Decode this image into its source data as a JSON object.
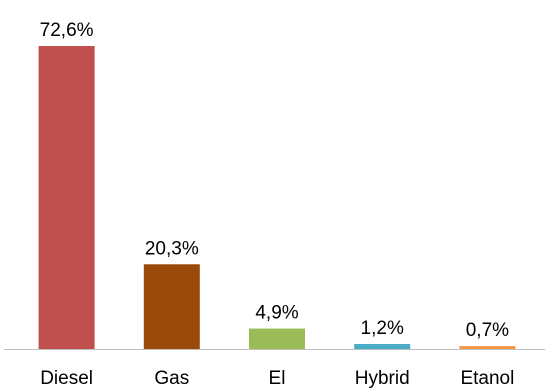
{
  "chart_data": {
    "type": "bar",
    "categories": [
      "Diesel",
      "Gas",
      "El",
      "Hybrid",
      "Etanol"
    ],
    "values": [
      72.6,
      20.3,
      4.9,
      1.2,
      0.7
    ],
    "data_labels": [
      "72,6%",
      "20,3%",
      "4,9%",
      "1,2%",
      "0,7%"
    ],
    "colors": [
      "#c0504d",
      "#9a4a0b",
      "#9bbb59",
      "#4bacc6",
      "#f79646"
    ],
    "unit": "%",
    "title": "",
    "xlabel": "",
    "ylabel": "",
    "ylim": [
      0,
      72.6
    ],
    "grid": false,
    "legend": "none"
  }
}
